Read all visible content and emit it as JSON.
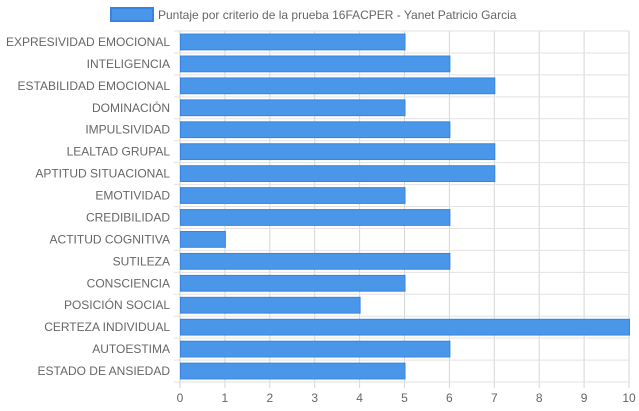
{
  "chart_data": {
    "type": "bar",
    "orientation": "horizontal",
    "categories": [
      "EXPRESIVIDAD EMOCIONAL",
      "INTELIGENCIA",
      "ESTABILIDAD EMOCIONAL",
      "DOMINACIÓN",
      "IMPULSIVIDAD",
      "LEALTAD GRUPAL",
      "APTITUD SITUACIONAL",
      "EMOTIVIDAD",
      "CREDIBILIDAD",
      "ACTITUD COGNITIVA",
      "SUTILEZA",
      "CONSCIENCIA",
      "POSICIÓN SOCIAL",
      "CERTEZA INDIVIDUAL",
      "AUTOESTIMA",
      "ESTADO DE ANSIEDAD"
    ],
    "series": [
      {
        "name": "Puntaje por criterio de la prueba 16FACPER - Yanet Patricio Garcia",
        "values": [
          5,
          6,
          7,
          5,
          6,
          7,
          7,
          5,
          6,
          1,
          6,
          5,
          4,
          10,
          6,
          5
        ],
        "color": "#4a97ea",
        "border_color": "#3684e0"
      }
    ],
    "xlim": [
      0,
      10
    ],
    "x_ticks": [
      "0",
      "1",
      "2",
      "3",
      "4",
      "5",
      "6",
      "7",
      "8",
      "9",
      "10"
    ],
    "grid": true,
    "legend_position": "top-center",
    "title": "",
    "xlabel": "",
    "ylabel": ""
  }
}
